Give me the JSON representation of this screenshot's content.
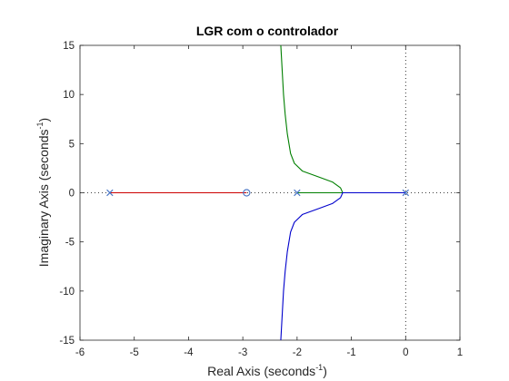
{
  "chart_data": {
    "type": "line",
    "title": "LGR com o controlador",
    "xlabel": {
      "text": "Real Axis (seconds",
      "sup": "-1",
      "close": ")"
    },
    "ylabel": {
      "text": "Imaginary Axis (seconds",
      "sup": "-1",
      "close": ")"
    },
    "xlim": [
      -6,
      1
    ],
    "ylim": [
      -15,
      15
    ],
    "xticks": [
      "-6",
      "-5",
      "-4",
      "-3",
      "-2",
      "-1",
      "0",
      "1"
    ],
    "yticks": [
      "-15",
      "-10",
      "-5",
      "0",
      "5",
      "10",
      "15"
    ],
    "grid": false,
    "poles": [
      {
        "x": -5.45,
        "y": 0
      },
      {
        "x": -2.0,
        "y": 0
      },
      {
        "x": 0.0,
        "y": 0
      }
    ],
    "zeros": [
      {
        "x": -2.93,
        "y": 0
      }
    ],
    "series": [
      {
        "color": "#cc0000",
        "points": [
          [
            -5.45,
            0
          ],
          [
            -2.93,
            0
          ]
        ]
      },
      {
        "color": "#007f00",
        "points": [
          [
            -2.0,
            0
          ],
          [
            -1.16,
            0
          ],
          [
            -1.2,
            0.5
          ],
          [
            -1.35,
            1.1
          ],
          [
            -1.6,
            1.6
          ],
          [
            -1.9,
            2.2
          ],
          [
            -2.05,
            3.0
          ],
          [
            -2.12,
            4.0
          ],
          [
            -2.18,
            6.0
          ],
          [
            -2.22,
            8.0
          ],
          [
            -2.25,
            10.0
          ],
          [
            -2.27,
            12.0
          ],
          [
            -2.29,
            14.0
          ],
          [
            -2.3,
            15.0
          ]
        ]
      },
      {
        "color": "#0000cc",
        "points": [
          [
            0.0,
            0
          ],
          [
            -1.16,
            0
          ],
          [
            -1.2,
            -0.5
          ],
          [
            -1.35,
            -1.1
          ],
          [
            -1.6,
            -1.6
          ],
          [
            -1.9,
            -2.2
          ],
          [
            -2.05,
            -3.0
          ],
          [
            -2.12,
            -4.0
          ],
          [
            -2.18,
            -6.0
          ],
          [
            -2.22,
            -8.0
          ],
          [
            -2.25,
            -10.0
          ],
          [
            -2.27,
            -12.0
          ],
          [
            -2.29,
            -14.0
          ],
          [
            -2.3,
            -15.0
          ]
        ]
      }
    ],
    "colors": {
      "pole": "#4472c4",
      "zero": "#4472c4",
      "axis": "#262626",
      "dotted": "#000000"
    }
  }
}
